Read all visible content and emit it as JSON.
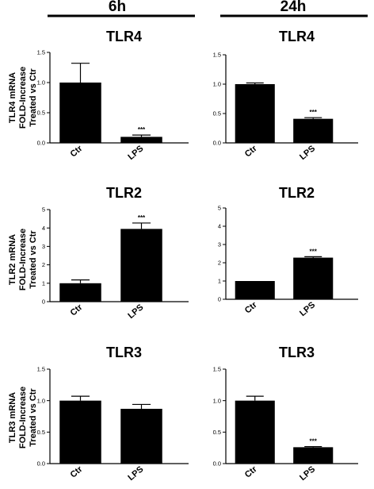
{
  "column_headers": [
    "6h",
    "24h"
  ],
  "row_ylabels": [
    [
      "TLR4 mRNA",
      "FOLD-Increase",
      "Treated vs Ctr"
    ],
    [
      "TLR2 mRNA",
      "FOLD-Increase",
      "Treated vs Ctr"
    ],
    [
      "TLR3 mRNA",
      "FOLD-Increase",
      "Treated vs Ctr"
    ]
  ],
  "colors": {
    "bar": "#000000",
    "axis": "#000000"
  },
  "chart_data": [
    {
      "type": "bar",
      "title": "TLR4",
      "xlabel": "",
      "ylabel": "",
      "categories": [
        "Ctr",
        "LPS"
      ],
      "values": [
        1.0,
        0.1
      ],
      "errors": [
        0.32,
        0.03
      ],
      "significance": [
        "",
        "***"
      ],
      "ylim": [
        0,
        1.5
      ],
      "yticks": [
        0.0,
        0.5,
        1.0,
        1.5
      ],
      "ytick_labels": [
        "0.0",
        "0.5",
        "1.0",
        "1.5"
      ],
      "grid": false
    },
    {
      "type": "bar",
      "title": "TLR4",
      "xlabel": "",
      "ylabel": "",
      "categories": [
        "Ctr",
        "LPS"
      ],
      "values": [
        1.0,
        0.41
      ],
      "errors": [
        0.02,
        0.02
      ],
      "significance": [
        "",
        "***"
      ],
      "ylim": [
        0,
        1.5
      ],
      "yticks": [
        0.0,
        0.5,
        1.0,
        1.5
      ],
      "ytick_labels": [
        "0.0",
        "0.5",
        "1.0",
        "1.5"
      ],
      "grid": false
    },
    {
      "type": "bar",
      "title": "TLR2",
      "xlabel": "",
      "ylabel": "",
      "categories": [
        "Ctr",
        "LPS"
      ],
      "values": [
        1.0,
        3.95
      ],
      "errors": [
        0.18,
        0.32
      ],
      "significance": [
        "",
        "***"
      ],
      "ylim": [
        0,
        5
      ],
      "yticks": [
        0,
        1,
        2,
        3,
        4,
        5
      ],
      "ytick_labels": [
        "0",
        "1",
        "2",
        "3",
        "4",
        "5"
      ],
      "grid": false
    },
    {
      "type": "bar",
      "title": "TLR2",
      "xlabel": "",
      "ylabel": "",
      "categories": [
        "Ctr",
        "LPS"
      ],
      "values": [
        1.0,
        2.28
      ],
      "errors": [
        0.0,
        0.05
      ],
      "significance": [
        "",
        "***"
      ],
      "ylim": [
        0,
        5
      ],
      "yticks": [
        0,
        1,
        2,
        3,
        4,
        5
      ],
      "ytick_labels": [
        "0",
        "1",
        "2",
        "3",
        "4",
        "5"
      ],
      "grid": false
    },
    {
      "type": "bar",
      "title": "TLR3",
      "xlabel": "",
      "ylabel": "",
      "categories": [
        "Ctr",
        "LPS"
      ],
      "values": [
        1.0,
        0.87
      ],
      "errors": [
        0.07,
        0.07
      ],
      "significance": [
        "",
        ""
      ],
      "ylim": [
        0,
        1.5
      ],
      "yticks": [
        0.0,
        0.5,
        1.0,
        1.5
      ],
      "ytick_labels": [
        "0.0",
        "0.5",
        "1.0",
        "1.5"
      ],
      "grid": false
    },
    {
      "type": "bar",
      "title": "TLR3",
      "xlabel": "",
      "ylabel": "",
      "categories": [
        "Ctr",
        "LPS"
      ],
      "values": [
        1.0,
        0.26
      ],
      "errors": [
        0.07,
        0.01
      ],
      "significance": [
        "",
        "***"
      ],
      "ylim": [
        0,
        1.5
      ],
      "yticks": [
        0.0,
        0.5,
        1.0,
        1.5
      ],
      "ytick_labels": [
        "0.0",
        "0.5",
        "1.0",
        "1.5"
      ],
      "grid": false
    }
  ]
}
